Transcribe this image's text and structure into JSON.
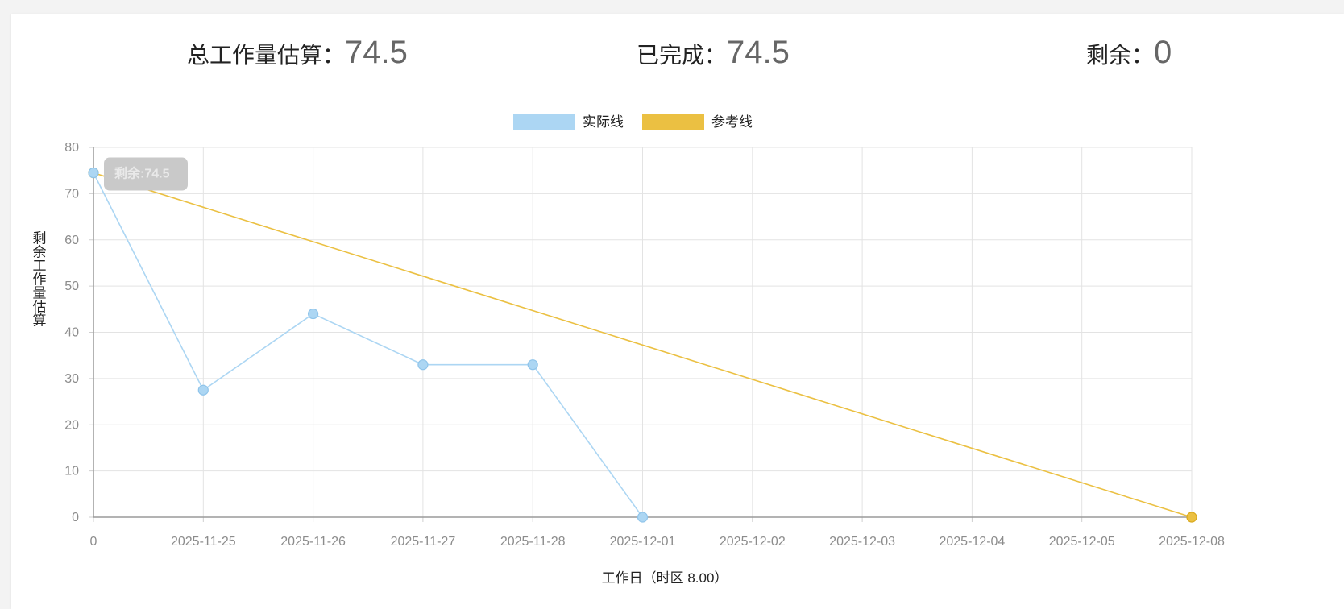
{
  "stats": {
    "total_label": "总工作量估算：",
    "total_value": "74.5",
    "done_label": "已完成：",
    "done_value": "74.5",
    "remain_label": "剩余：",
    "remain_value": "0"
  },
  "chart_data": {
    "type": "line",
    "categories": [
      "0",
      "2025-11-25",
      "2025-11-26",
      "2025-11-27",
      "2025-11-28",
      "2025-12-01",
      "2025-12-02",
      "2025-12-03",
      "2025-12-04",
      "2025-12-05",
      "2025-12-08"
    ],
    "series": [
      {
        "name": "实际线",
        "color": "#acd6f3",
        "values": [
          74.5,
          27.5,
          44,
          33,
          33,
          0,
          null,
          null,
          null,
          null,
          null
        ]
      },
      {
        "name": "参考线",
        "color": "#ebc042",
        "values": [
          74.5,
          null,
          null,
          null,
          null,
          null,
          null,
          null,
          null,
          null,
          0
        ]
      }
    ],
    "xlabel": "工作日（时区 8.00）",
    "ylabel": "剩余工作量估算",
    "ylim": [
      0,
      80
    ],
    "yticks": [
      0,
      10,
      20,
      30,
      40,
      50,
      60,
      70,
      80
    ],
    "grid": true,
    "legend_position": "top-center",
    "tooltip": "剩余:74.5"
  }
}
